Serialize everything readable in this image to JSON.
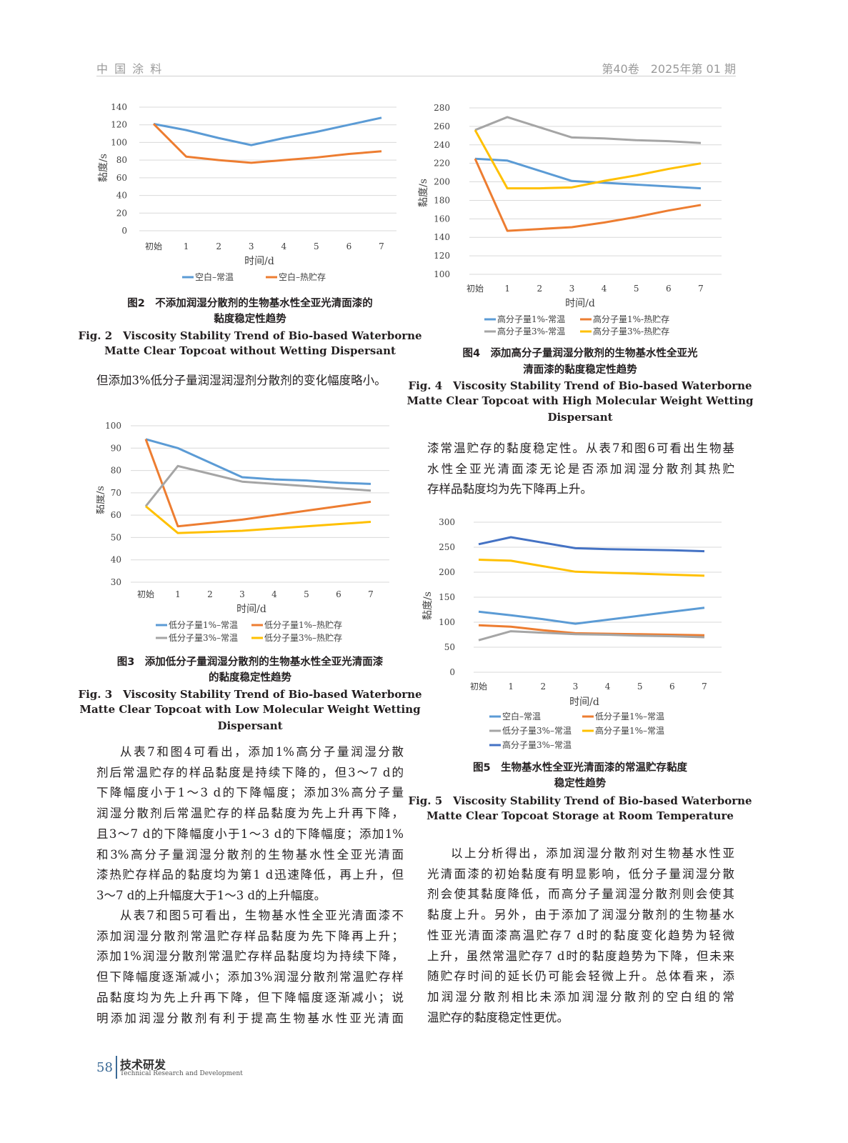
{
  "header": {
    "journal": "中 国 涂 料",
    "issue": "第40卷　2025年第 01 期"
  },
  "footer": {
    "page": "58",
    "section": "技术研发",
    "section_en": "Technical Research and Development"
  },
  "body": {
    "left_intro": [
      "但添加3%低分子量润湿润湿剂分散剂的变化幅度略小。"
    ],
    "left_p1": [
      "从表7和图4可看出，添加1%高分子量润湿分散",
      "剂后常温贮存的样品黏度是持续下降的，但3～7 d的",
      "下降幅度小于1～3 d的下降幅度；添加3%高分子量",
      "润湿分散剂后常温贮存的样品黏度为先上升再下降，",
      "且3～7 d的下降幅度小于1～3 d的下降幅度；添加1%",
      "和3%高分子量润湿分散剂的生物基水性全亚光清面",
      "漆热贮存样品的黏度均为第1 d迅速降低，再上升，但",
      "3～7 d的上升幅度大于1～3 d的上升幅度。"
    ],
    "left_p2": [
      "从表7和图5可看出，生物基水性全亚光清面漆不",
      "添加润湿分散剂常温贮存样品黏度为先下降再上升；",
      "添加1%润湿分散剂常温贮存样品黏度均为持续下降，",
      "但下降幅度逐渐减小；添加3%润湿分散剂常温贮存样",
      "品黏度均为先上升再下降，但下降幅度逐渐减小；说",
      "明添加润湿分散剂有利于提高生物基水性亚光清面"
    ],
    "right_p1": [
      "漆常温贮存的黏度稳定性。从表7和图6可看出生物基",
      "水性全亚光清面漆无论是否添加润湿分散剂其热贮",
      "存样品黏度均为先下降再上升。"
    ],
    "right_p2": [
      "以上分析得出，添加润湿分散剂对生物基水性亚",
      "光清面漆的初始黏度有明显影响，低分子量润湿分散",
      "剂会使其黏度降低，而高分子量润湿分散剂则会使其",
      "黏度上升。另外，由于添加了润湿分散剂的生物基水",
      "性亚光清面漆高温贮存7 d时的黏度变化趋势为轻微",
      "上升，虽然常温贮存7 d时的黏度趋势为下降，但未来",
      "随贮存时间的延长仍可能会轻微上升。总体看来，添",
      "加润湿分散剂相比未添加润湿分散剂的空白组的常",
      "温贮存的黏度稳定性更优。"
    ]
  },
  "captions": {
    "fig2": [
      "图2　不添加润湿分散剂的生物基水性全亚光清面漆的",
      "黏度稳定性趋势",
      "Fig. 2　Viscosity Stability Trend of Bio-based Waterborne",
      "Matte Clear Topcoat without Wetting Dispersant"
    ],
    "fig4": [
      "图4　添加高分子量润湿分散剂的生物基水性全亚光",
      "清面漆的黏度稳定性趋势",
      "Fig. 4　Viscosity Stability Trend of Bio-based Waterborne",
      "Matte Clear Topcoat with High Molecular Weight Wetting",
      "Dispersant"
    ],
    "fig3": [
      "图3　添加低分子量润湿分散剂的生物基水性全亚光清面漆",
      "的黏度稳定性趋势",
      "Fig. 3　Viscosity Stability Trend of Bio-based Waterborne",
      "Matte Clear Topcoat with Low Molecular Weight Wetting",
      "Dispersant"
    ],
    "fig5": [
      "图5　生物基水性全亚光清面漆的常温贮存黏度",
      "稳定性趋势",
      "Fig. 5　Viscosity Stability Trend of Bio-based Waterborne",
      "Matte Clear Topcoat Storage at Room Temperature"
    ]
  },
  "chart_data": [
    {
      "id": "fig2",
      "type": "line",
      "xlabel": "时间/d",
      "ylabel": "黏度/s",
      "categories": [
        "初始",
        "1",
        "2",
        "3",
        "4",
        "5",
        "6",
        "7"
      ],
      "ylim": [
        0,
        140
      ],
      "yticks": [
        0,
        20,
        40,
        60,
        80,
        100,
        120,
        140
      ],
      "grid": true,
      "legend": "bottom",
      "series": [
        {
          "name": "空白–常温",
          "color": "#5b9bd5",
          "values": [
            121,
            114,
            105,
            97,
            105,
            112,
            120,
            128
          ]
        },
        {
          "name": "空白–热贮存",
          "color": "#ed7d31",
          "values": [
            121,
            84,
            80,
            77,
            80,
            83,
            87,
            90
          ]
        }
      ]
    },
    {
      "id": "fig4",
      "type": "line",
      "xlabel": "时间/d",
      "ylabel": "黏度/s",
      "categories": [
        "初始",
        "1",
        "2",
        "3",
        "4",
        "5",
        "6",
        "7"
      ],
      "ylim": [
        100,
        280
      ],
      "yticks": [
        100,
        120,
        140,
        160,
        180,
        200,
        220,
        240,
        260,
        280
      ],
      "grid": true,
      "legend": "bottom",
      "series": [
        {
          "name": "高分子量1%-常温",
          "color": "#5b9bd5",
          "values": [
            225,
            223,
            212,
            201,
            199,
            197,
            195,
            193
          ]
        },
        {
          "name": "高分子量1%-热贮存",
          "color": "#ed7d31",
          "values": [
            225,
            147,
            149,
            151,
            156,
            162,
            169,
            175
          ]
        },
        {
          "name": "高分子量3%-常温",
          "color": "#a5a5a5",
          "values": [
            256,
            270,
            259,
            248,
            247,
            245,
            244,
            242
          ]
        },
        {
          "name": "高分子量3%-热贮存",
          "color": "#ffc000",
          "values": [
            256,
            193,
            193,
            194,
            201,
            207,
            214,
            220
          ]
        }
      ]
    },
    {
      "id": "fig3",
      "type": "line",
      "xlabel": "时间/d",
      "ylabel": "黏度/s",
      "categories": [
        "初始",
        "1",
        "2",
        "3",
        "4",
        "5",
        "6",
        "7"
      ],
      "ylim": [
        30,
        100
      ],
      "yticks": [
        30,
        40,
        50,
        60,
        70,
        80,
        90,
        100
      ],
      "grid": true,
      "legend": "bottom",
      "series": [
        {
          "name": "低分子量1%–常温",
          "color": "#5b9bd5",
          "values": [
            94,
            90,
            83.5,
            77,
            76,
            75.5,
            74.5,
            74
          ]
        },
        {
          "name": "低分子量1%–热贮存",
          "color": "#ed7d31",
          "values": [
            94,
            55,
            56.5,
            58,
            60,
            62,
            64,
            66
          ]
        },
        {
          "name": "低分子量3%–常温",
          "color": "#a5a5a5",
          "values": [
            64,
            82,
            78.5,
            75,
            74,
            73,
            72,
            71
          ]
        },
        {
          "name": "低分子量3%–热贮存",
          "color": "#ffc000",
          "values": [
            64,
            52,
            52.5,
            53,
            54,
            55,
            56,
            57
          ]
        }
      ]
    },
    {
      "id": "fig5",
      "type": "line",
      "xlabel": "时间/d",
      "ylabel": "黏度/s",
      "categories": [
        "初始",
        "1",
        "2",
        "3",
        "4",
        "5",
        "6",
        "7"
      ],
      "ylim": [
        0,
        300
      ],
      "yticks": [
        0,
        50,
        100,
        150,
        200,
        250,
        300
      ],
      "grid": true,
      "legend": "bottom",
      "series": [
        {
          "name": "空白–常温",
          "color": "#5b9bd5",
          "values": [
            121,
            114,
            106,
            97,
            105,
            113,
            121,
            129
          ]
        },
        {
          "name": "低分子量1%–常温",
          "color": "#ed7d31",
          "values": [
            94,
            91,
            84,
            78,
            77,
            76,
            75,
            74
          ]
        },
        {
          "name": "低分子量3%–常温",
          "color": "#a5a5a5",
          "values": [
            64,
            82,
            79,
            76,
            75,
            73,
            72,
            70
          ]
        },
        {
          "name": "高分子量1%–常温",
          "color": "#ffc000",
          "values": [
            225,
            223,
            212,
            201,
            199,
            197,
            195,
            193
          ]
        },
        {
          "name": "高分子量3%–常温",
          "color": "#4472c4",
          "values": [
            256,
            270,
            259,
            248,
            246,
            245,
            244,
            242
          ]
        }
      ]
    }
  ]
}
